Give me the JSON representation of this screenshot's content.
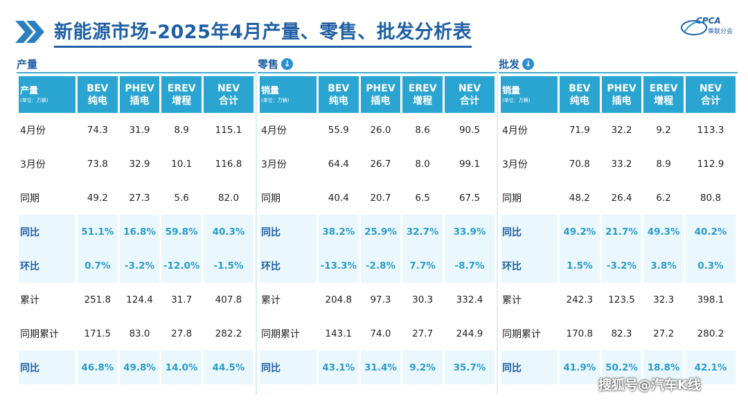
{
  "title": "新能源市场-2025年4月产量、零售、批发分析表",
  "logo": {
    "brand": "CPCA",
    "sub": "乘联分会"
  },
  "colors": {
    "header_bg": "#2aa4d0",
    "title": "#1f5fa3",
    "highlight_text": "#2a9ccd",
    "highlight_bg": "#eaf7fd"
  },
  "sections": [
    {
      "heading": "产量",
      "has_download_icon": false,
      "col_label": "产量",
      "unit": "(单位：万辆)",
      "columns": [
        [
          "BEV",
          "纯电"
        ],
        [
          "PHEV",
          "插电"
        ],
        [
          "EREV",
          "增程"
        ],
        [
          "NEV",
          "合计"
        ]
      ],
      "rows": [
        {
          "label": "4月份",
          "values": [
            "74.3",
            "31.9",
            "8.9",
            "115.1"
          ],
          "highlight": false
        },
        {
          "label": "3月份",
          "values": [
            "73.8",
            "32.9",
            "10.1",
            "116.8"
          ],
          "highlight": false
        },
        {
          "label": "同期",
          "values": [
            "49.2",
            "27.3",
            "5.6",
            "82.0"
          ],
          "highlight": false
        },
        {
          "label": "同比",
          "values": [
            "51.1%",
            "16.8%",
            "59.8%",
            "40.3%"
          ],
          "highlight": true
        },
        {
          "label": "环比",
          "values": [
            "0.7%",
            "-3.2%",
            "-12.0%",
            "-1.5%"
          ],
          "highlight": true
        },
        {
          "label": "累计",
          "values": [
            "251.8",
            "124.4",
            "31.7",
            "407.8"
          ],
          "highlight": false
        },
        {
          "label": "同期累计",
          "values": [
            "171.5",
            "83.0",
            "27.8",
            "282.2"
          ],
          "highlight": false
        },
        {
          "label": "同比",
          "values": [
            "46.8%",
            "49.8%",
            "14.0%",
            "44.5%"
          ],
          "highlight": true
        }
      ]
    },
    {
      "heading": "零售",
      "has_download_icon": true,
      "col_label": "销量",
      "unit": "(单位：万辆)",
      "columns": [
        [
          "BEV",
          "纯电"
        ],
        [
          "PHEV",
          "插电"
        ],
        [
          "EREV",
          "增程"
        ],
        [
          "NEV",
          "合计"
        ]
      ],
      "rows": [
        {
          "label": "4月份",
          "values": [
            "55.9",
            "26.0",
            "8.6",
            "90.5"
          ],
          "highlight": false
        },
        {
          "label": "3月份",
          "values": [
            "64.4",
            "26.7",
            "8.0",
            "99.1"
          ],
          "highlight": false
        },
        {
          "label": "同期",
          "values": [
            "40.4",
            "20.7",
            "6.5",
            "67.5"
          ],
          "highlight": false
        },
        {
          "label": "同比",
          "values": [
            "38.2%",
            "25.9%",
            "32.7%",
            "33.9%"
          ],
          "highlight": true
        },
        {
          "label": "环比",
          "values": [
            "-13.3%",
            "-2.8%",
            "7.7%",
            "-8.7%"
          ],
          "highlight": true
        },
        {
          "label": "累计",
          "values": [
            "204.8",
            "97.3",
            "30.3",
            "332.4"
          ],
          "highlight": false
        },
        {
          "label": "同期累计",
          "values": [
            "143.1",
            "74.0",
            "27.7",
            "244.9"
          ],
          "highlight": false
        },
        {
          "label": "同比",
          "values": [
            "43.1%",
            "31.4%",
            "9.2%",
            "35.7%"
          ],
          "highlight": true
        }
      ]
    },
    {
      "heading": "批发",
      "has_download_icon": true,
      "col_label": "销量",
      "unit": "(单位：万辆)",
      "columns": [
        [
          "BEV",
          "纯电"
        ],
        [
          "PHEV",
          "插电"
        ],
        [
          "EREV",
          "增程"
        ],
        [
          "NEV",
          "合计"
        ]
      ],
      "rows": [
        {
          "label": "4月份",
          "values": [
            "71.9",
            "32.2",
            "9.2",
            "113.3"
          ],
          "highlight": false
        },
        {
          "label": "3月份",
          "values": [
            "70.8",
            "33.2",
            "8.9",
            "112.9"
          ],
          "highlight": false
        },
        {
          "label": "同期",
          "values": [
            "48.2",
            "26.4",
            "6.2",
            "80.8"
          ],
          "highlight": false
        },
        {
          "label": "同比",
          "values": [
            "49.2%",
            "21.7%",
            "49.3%",
            "40.2%"
          ],
          "highlight": true
        },
        {
          "label": "环比",
          "values": [
            "1.5%",
            "-3.2%",
            "3.8%",
            "0.3%"
          ],
          "highlight": true
        },
        {
          "label": "累计",
          "values": [
            "242.3",
            "123.5",
            "32.3",
            "398.1"
          ],
          "highlight": false
        },
        {
          "label": "同期累计",
          "values": [
            "170.8",
            "82.3",
            "27.2",
            "280.2"
          ],
          "highlight": false
        },
        {
          "label": "同比",
          "values": [
            "41.9%",
            "50.2%",
            "18.8%",
            "42.1%"
          ],
          "highlight": true
        }
      ]
    }
  ],
  "footer": "搜狐号@汽车K线"
}
